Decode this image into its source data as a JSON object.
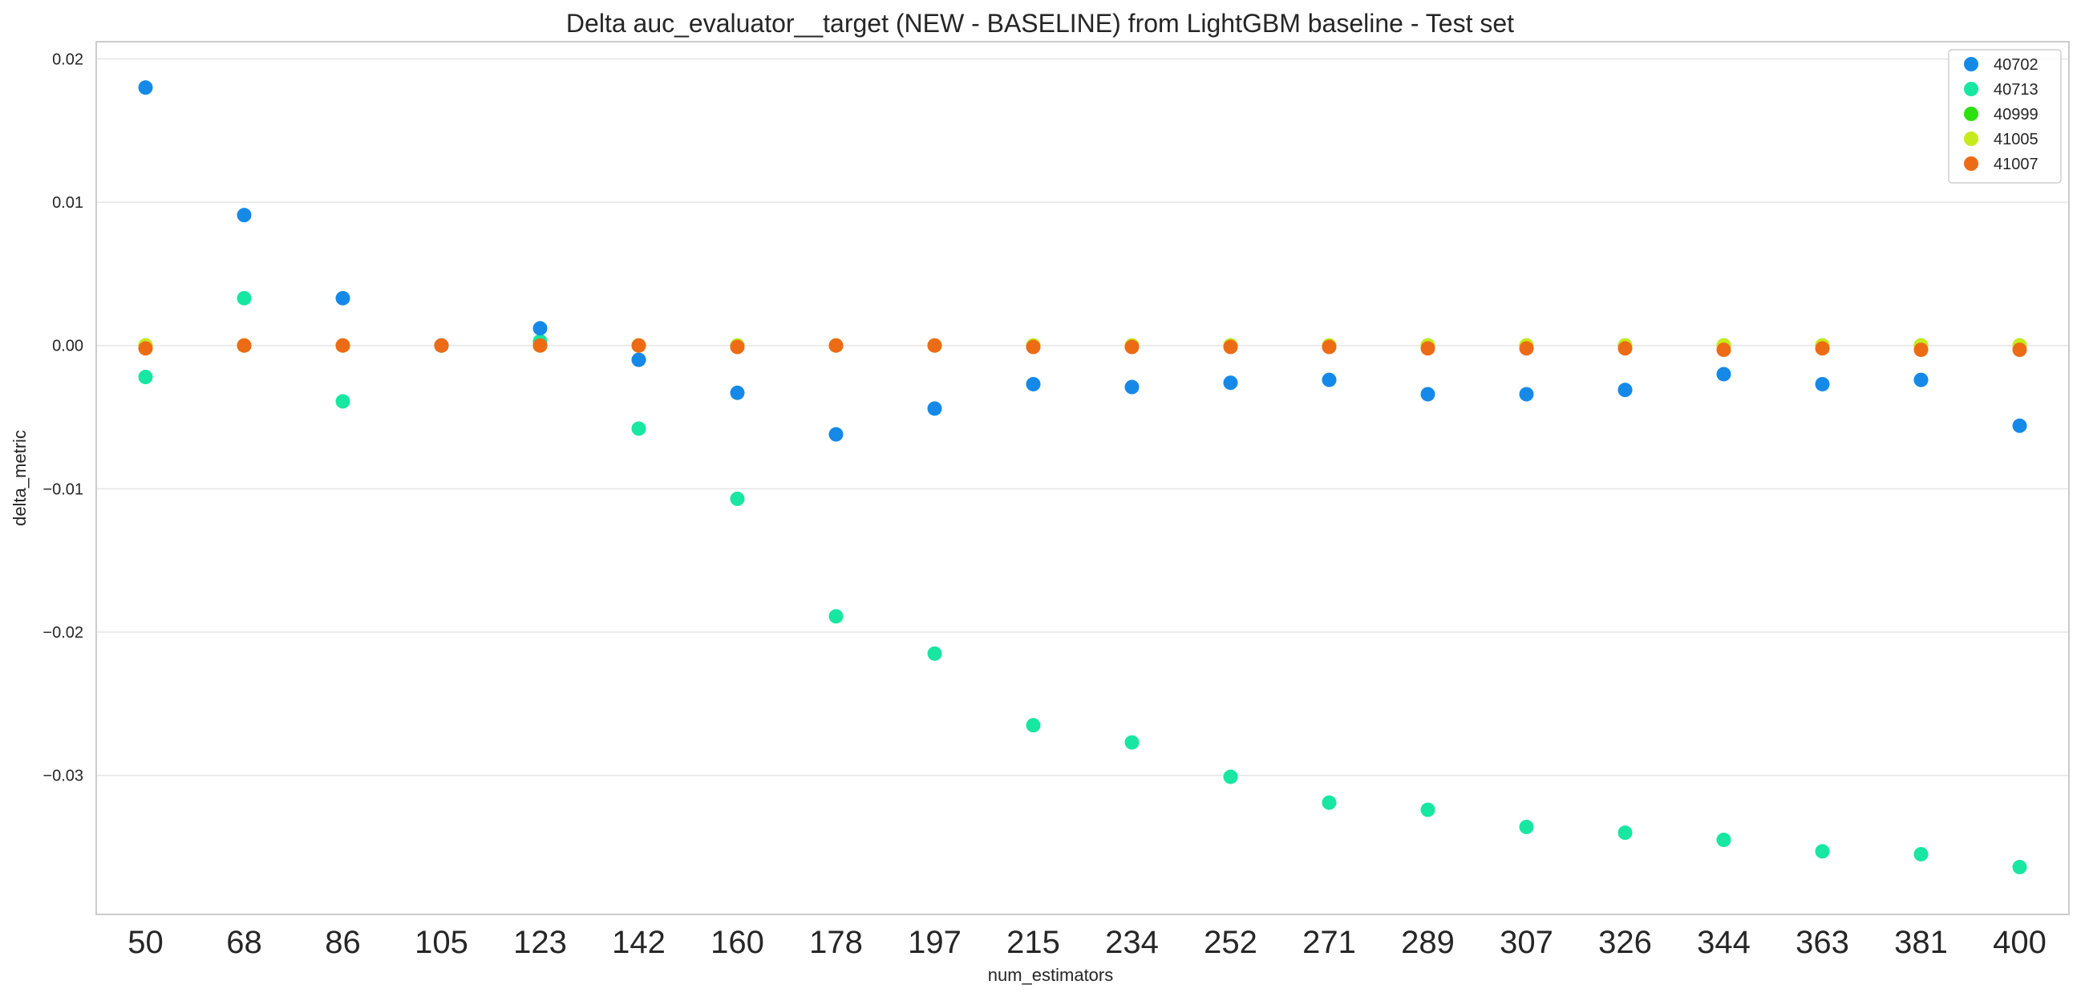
{
  "chart_data": {
    "type": "scatter",
    "title": "Delta auc_evaluator__target (NEW - BASELINE) from LightGBM baseline - Test set",
    "xlabel": "num_estimators",
    "ylabel": "delta_metric",
    "categories": [
      "50",
      "68",
      "86",
      "105",
      "123",
      "142",
      "160",
      "178",
      "197",
      "215",
      "234",
      "252",
      "271",
      "289",
      "307",
      "326",
      "344",
      "363",
      "381",
      "400"
    ],
    "ylim": [
      -0.0397,
      0.0212
    ],
    "yticks": [
      0.02,
      0.01,
      0.0,
      -0.01,
      -0.02,
      -0.03
    ],
    "ytick_labels": [
      "0.02",
      "0.01",
      "0.00",
      "−0.01",
      "−0.02",
      "−0.03"
    ],
    "grid": "horizontal",
    "legend_position": "top-right",
    "series": [
      {
        "name": "40999",
        "color": "#2de00f",
        "values": [
          0.0,
          0.0,
          0.0,
          0.0,
          0.0,
          0.0,
          0.0,
          0.0,
          0.0,
          0.0,
          0.0,
          0.0,
          0.0,
          0.0,
          0.0,
          0.0,
          0.0,
          0.0,
          0.0,
          0.0
        ]
      },
      {
        "name": "41005",
        "color": "#c6eb1a",
        "values": [
          0.0,
          0.0,
          0.0,
          0.0,
          0.0,
          0.0,
          0.0,
          0.0,
          0.0,
          0.0,
          0.0,
          0.0,
          0.0,
          0.0,
          0.0,
          0.0,
          0.0,
          0.0,
          0.0,
          0.0
        ]
      },
      {
        "name": "40713",
        "color": "#17e7a0",
        "values": [
          -0.0022,
          0.0033,
          -0.0039,
          0.0,
          0.0003,
          -0.0058,
          -0.0107,
          -0.0189,
          -0.0215,
          -0.0265,
          -0.0277,
          -0.0301,
          -0.0319,
          -0.0324,
          -0.0336,
          -0.034,
          -0.0345,
          -0.0353,
          -0.0355,
          -0.0364
        ]
      },
      {
        "name": "40702",
        "color": "#1589e8",
        "values": [
          0.018,
          0.0091,
          0.0033,
          0.0,
          0.0012,
          -0.001,
          -0.0033,
          -0.0062,
          -0.0044,
          -0.0027,
          -0.0029,
          -0.0026,
          -0.0024,
          -0.0034,
          -0.0034,
          -0.0031,
          -0.002,
          -0.0027,
          -0.0024,
          -0.0056
        ]
      },
      {
        "name": "41007",
        "color": "#ee6b16",
        "values": [
          -0.0002,
          0.0,
          0.0,
          0.0,
          0.0,
          0.0,
          -0.0001,
          0.0,
          0.0,
          -0.0001,
          -0.0001,
          -0.0001,
          -0.0001,
          -0.0002,
          -0.0002,
          -0.0002,
          -0.0003,
          -0.0002,
          -0.0003,
          -0.0003
        ]
      }
    ],
    "legend_order": [
      "40702",
      "40713",
      "40999",
      "41005",
      "41007"
    ]
  }
}
